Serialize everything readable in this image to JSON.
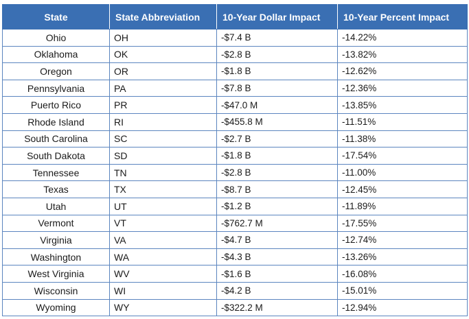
{
  "headers": {
    "state": "State",
    "abbr": "State Abbreviation",
    "dollar": "10-Year Dollar Impact",
    "percent": "10-Year Percent Impact"
  },
  "rows": [
    {
      "state": "Ohio",
      "abbr": "OH",
      "dollar": "-$7.4 B",
      "percent": "-14.22%"
    },
    {
      "state": "Oklahoma",
      "abbr": "OK",
      "dollar": "-$2.8 B",
      "percent": "-13.82%"
    },
    {
      "state": "Oregon",
      "abbr": "OR",
      "dollar": "-$1.8 B",
      "percent": "-12.62%"
    },
    {
      "state": "Pennsylvania",
      "abbr": "PA",
      "dollar": "-$7.8 B",
      "percent": "-12.36%"
    },
    {
      "state": "Puerto Rico",
      "abbr": "PR",
      "dollar": "-$47.0 M",
      "percent": "-13.85%"
    },
    {
      "state": "Rhode Island",
      "abbr": "RI",
      "dollar": "-$455.8 M",
      "percent": "-11.51%"
    },
    {
      "state": "South Carolina",
      "abbr": "SC",
      "dollar": "-$2.7 B",
      "percent": "-11.38%"
    },
    {
      "state": "South Dakota",
      "abbr": "SD",
      "dollar": "-$1.8 B",
      "percent": "-17.54%"
    },
    {
      "state": "Tennessee",
      "abbr": "TN",
      "dollar": "-$2.8 B",
      "percent": "-11.00%"
    },
    {
      "state": "Texas",
      "abbr": "TX",
      "dollar": "-$8.7 B",
      "percent": "-12.45%"
    },
    {
      "state": "Utah",
      "abbr": "UT",
      "dollar": "-$1.2 B",
      "percent": "-11.89%"
    },
    {
      "state": "Vermont",
      "abbr": "VT",
      "dollar": "-$762.7 M",
      "percent": "-17.55%"
    },
    {
      "state": "Virginia",
      "abbr": "VA",
      "dollar": "-$4.7 B",
      "percent": "-12.74%"
    },
    {
      "state": "Washington",
      "abbr": "WA",
      "dollar": "-$4.3 B",
      "percent": "-13.26%"
    },
    {
      "state": "West Virginia",
      "abbr": "WV",
      "dollar": "-$1.6 B",
      "percent": "-16.08%"
    },
    {
      "state": "Wisconsin",
      "abbr": "WI",
      "dollar": "-$4.2 B",
      "percent": "-15.01%"
    },
    {
      "state": "Wyoming",
      "abbr": "WY",
      "dollar": "-$322.2 M",
      "percent": "-12.94%"
    }
  ],
  "colors": {
    "header_bg": "#3a6fb3",
    "header_text": "#ffffff",
    "border": "#5b85bf"
  }
}
